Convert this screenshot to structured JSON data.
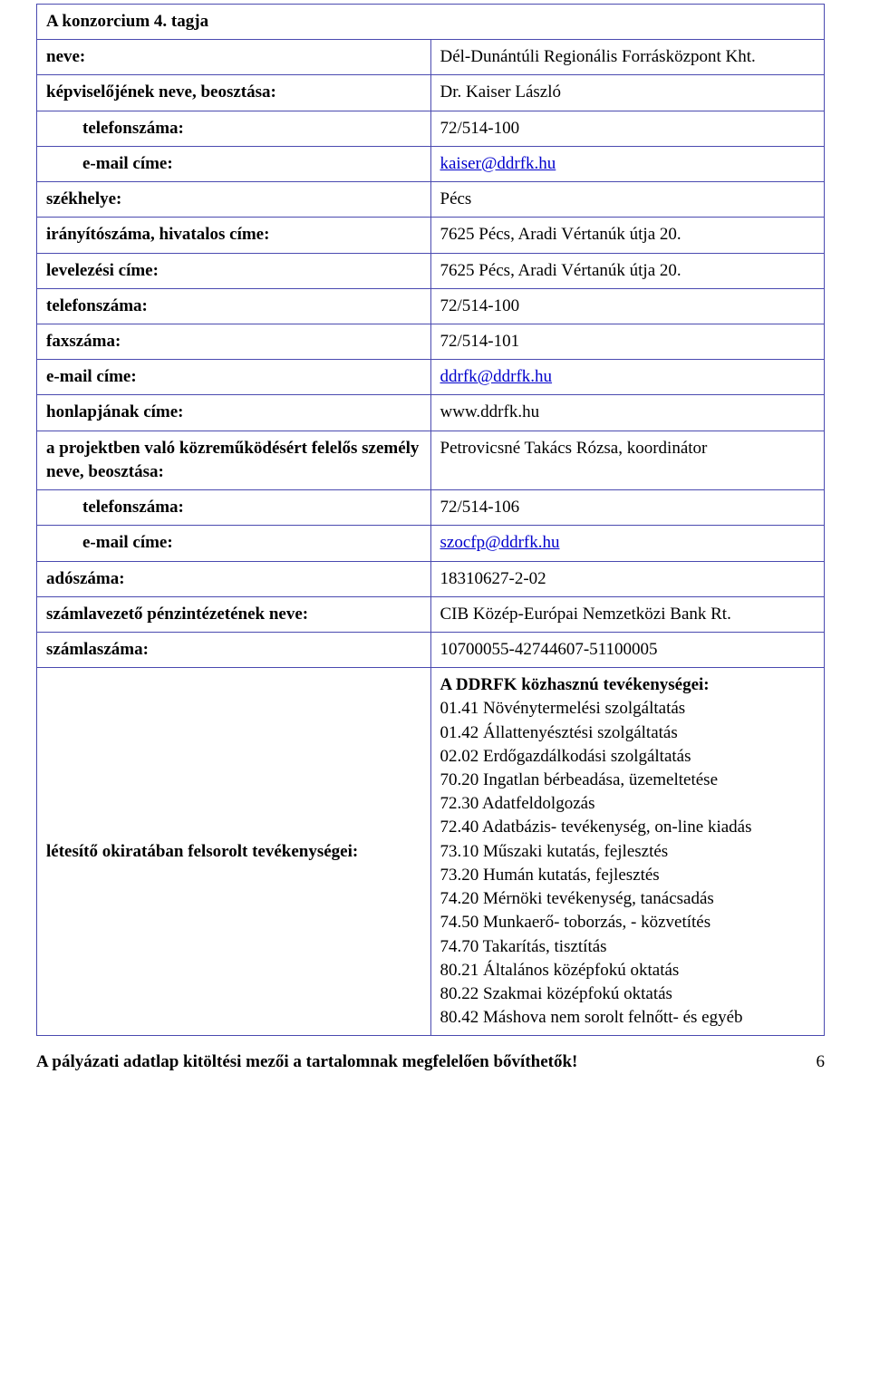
{
  "header_title": "A konzorcium 4. tagja",
  "rows": [
    {
      "label": "neve:",
      "value": "Dél-Dunántúli Regionális Forrásközpont Kht.",
      "indent": false
    },
    {
      "label": "képviselőjének neve, beosztása:",
      "value": "Dr. Kaiser László",
      "indent": false
    },
    {
      "label": "telefonszáma:",
      "value": "72/514-100",
      "indent": true
    },
    {
      "label": "e-mail címe:",
      "value": "kaiser@ddrfk.hu",
      "indent": true,
      "link": true
    },
    {
      "label": "székhelye:",
      "value": "Pécs",
      "indent": false
    },
    {
      "label": "irányítószáma, hivatalos címe:",
      "value": "7625 Pécs, Aradi Vértanúk útja 20.",
      "indent": false
    },
    {
      "label": "levelezési címe:",
      "value": "7625 Pécs, Aradi Vértanúk útja 20.",
      "indent": false
    },
    {
      "label": "telefonszáma:",
      "value": "72/514-100",
      "indent": false
    },
    {
      "label": "faxszáma:",
      "value": "72/514-101",
      "indent": false
    },
    {
      "label": "e-mail címe:",
      "value": "ddrfk@ddrfk.hu",
      "indent": false,
      "link": true
    },
    {
      "label": "honlapjának címe:",
      "value": "www.ddrfk.hu",
      "indent": false
    },
    {
      "label": "a projektben való közreműködésért felelős személy neve, beosztása:",
      "value": "Petrovicsné Takács Rózsa, koordinátor",
      "indent": false
    },
    {
      "label": "telefonszáma:",
      "value": "72/514-106",
      "indent": true
    },
    {
      "label": "e-mail címe:",
      "value": "szocfp@ddrfk.hu",
      "indent": true,
      "link": true
    },
    {
      "label": "adószáma:",
      "value": "18310627-2-02",
      "indent": false
    },
    {
      "label": "számlavezető pénzintézetének neve:",
      "value": "CIB Közép-Európai Nemzetközi Bank Rt.",
      "indent": false
    },
    {
      "label": "számlaszáma:",
      "value": "10700055-42744607-51100005",
      "indent": false
    }
  ],
  "activities": {
    "label": "létesítő okiratában felsorolt tevékenységei:",
    "title": "A DDRFK közhasznú tevékenységei:",
    "items": [
      "01.41 Növénytermelési szolgáltatás",
      "01.42 Állattenyésztési szolgáltatás",
      "02.02 Erdőgazdálkodási szolgáltatás",
      "70.20 Ingatlan bérbeadása, üzemeltetése",
      "72.30 Adatfeldolgozás",
      "72.40 Adatbázis- tevékenység, on-line kiadás",
      "73.10 Műszaki kutatás, fejlesztés",
      "73.20 Humán kutatás, fejlesztés",
      "74.20 Mérnöki tevékenység, tanácsadás",
      "74.50 Munkaerő- toborzás, - közvetítés",
      "74.70 Takarítás, tisztítás",
      "80.21 Általános középfokú oktatás",
      "80.22 Szakmai középfokú oktatás"
    ],
    "last_line": "80.42 Máshova nem sorolt felnőtt- és egyéb"
  },
  "footer_note": "A pályázati adatlap kitöltési mezői a tartalomnak megfelelően bővíthetők!",
  "page_number": "6",
  "colors": {
    "border": "#4a4ab0",
    "link": "#0000cc",
    "text": "#000000",
    "background": "#ffffff"
  },
  "typography": {
    "font_family": "Times New Roman",
    "font_size_pt": 14
  }
}
